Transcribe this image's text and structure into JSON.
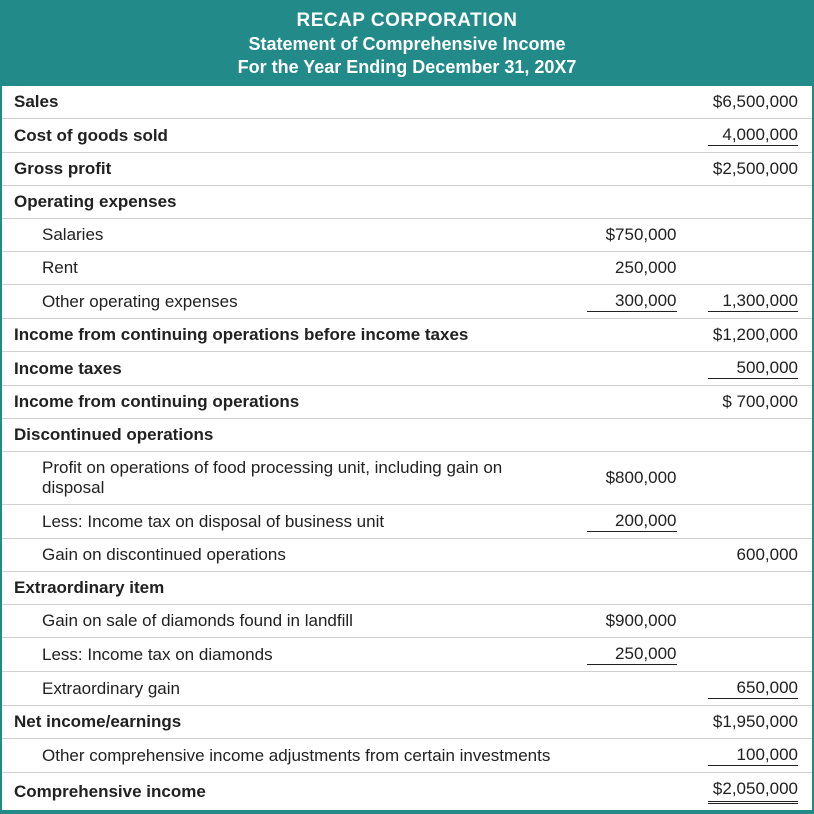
{
  "header": {
    "company": "RECAP CORPORATION",
    "title": "Statement of Comprehensive Income",
    "period": "For the Year Ending December 31, 20X7"
  },
  "colors": {
    "accent": "#238a8a",
    "text": "#212121",
    "row_border": "#d0d0d0",
    "background": "#ffffff"
  },
  "rows": [
    {
      "label": "Sales",
      "bold": true,
      "col2": "$6,500,000"
    },
    {
      "label": "Cost of goods sold",
      "bold": true,
      "col2": "4,000,000",
      "col2_underline": "single"
    },
    {
      "label": "Gross profit",
      "bold": true,
      "col2": "$2,500,000"
    },
    {
      "label": "Operating expenses",
      "bold": true
    },
    {
      "label": "Salaries",
      "indent": 1,
      "col1": "$750,000"
    },
    {
      "label": "Rent",
      "indent": 1,
      "col1": "250,000"
    },
    {
      "label": "Other operating expenses",
      "indent": 1,
      "col1": "300,000",
      "col1_underline": "single",
      "col2": "1,300,000",
      "col2_underline": "single"
    },
    {
      "label": "Income from continuing operations before income taxes",
      "bold": true,
      "col2": "$1,200,000"
    },
    {
      "label": "Income taxes",
      "bold": true,
      "col2": "500,000",
      "col2_underline": "single"
    },
    {
      "label": "Income from continuing operations",
      "bold": true,
      "col2": "$   700,000"
    },
    {
      "label": "Discontinued operations",
      "bold": true
    },
    {
      "label": "Profit on operations of food processing unit, including gain on disposal",
      "indent": 1,
      "col1": "$800,000"
    },
    {
      "label": "Less:  Income tax on disposal of business unit",
      "indent": 1,
      "col1": "200,000",
      "col1_underline": "single"
    },
    {
      "label": "Gain on discontinued operations",
      "indent": 1,
      "col2": "600,000"
    },
    {
      "label": "Extraordinary item",
      "bold": true
    },
    {
      "label": "Gain on sale of diamonds found in landfill",
      "indent": 1,
      "col1": "$900,000"
    },
    {
      "label": "Less:  Income tax on diamonds",
      "indent": 1,
      "col1": "250,000",
      "col1_underline": "single"
    },
    {
      "label": "Extraordinary gain",
      "indent": 1,
      "col2": "650,000",
      "col2_underline": "single"
    },
    {
      "label": "Net income/earnings",
      "bold": true,
      "col2": "$1,950,000"
    },
    {
      "label": "Other comprehensive income adjustments from certain investments",
      "indent": 1,
      "col2": "100,000",
      "col2_underline": "single"
    },
    {
      "label": "Comprehensive income",
      "bold": true,
      "col2": "$2,050,000",
      "col2_underline": "double",
      "last": true
    }
  ]
}
